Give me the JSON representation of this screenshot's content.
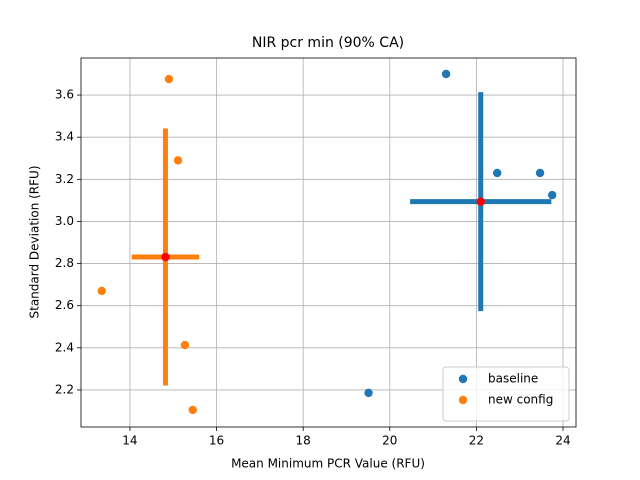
{
  "chart_data": {
    "type": "scatter",
    "title": "NIR pcr min (90% CA)",
    "x_label": "Mean Minimum PCR Value (RFU)",
    "y_label": "Standard Deviation (RFU)",
    "xlim": [
      12.87,
      24.3
    ],
    "ylim": [
      2.024,
      3.776
    ],
    "xticks": [
      14,
      16,
      18,
      20,
      22,
      24
    ],
    "yticks": [
      2.2,
      2.4,
      2.6,
      2.8,
      {
        "value": 3,
        "label": "3.0"
      },
      3.2,
      3.4,
      3.6
    ],
    "grid": true,
    "legend": "lower right",
    "mean_color": "red",
    "series": [
      {
        "name": "baseline",
        "color": "#1f77b4",
        "x": [
          21.3,
          22.48,
          23.47,
          23.75,
          19.51
        ],
        "values": [
          3.7,
          3.23,
          3.23,
          3.125,
          2.186
        ],
        "mean_x": 22.1,
        "mean_y": 3.094,
        "xerr": 1.63,
        "yerr": 0.52
      },
      {
        "name": "new config",
        "color": "#ff7f0e",
        "x": [
          14.9,
          15.11,
          13.35,
          15.27,
          15.45
        ],
        "values": [
          3.676,
          3.29,
          2.67,
          2.413,
          2.105
        ],
        "mean_x": 14.82,
        "mean_y": 2.831,
        "xerr": 0.78,
        "yerr": 0.61
      }
    ]
  }
}
